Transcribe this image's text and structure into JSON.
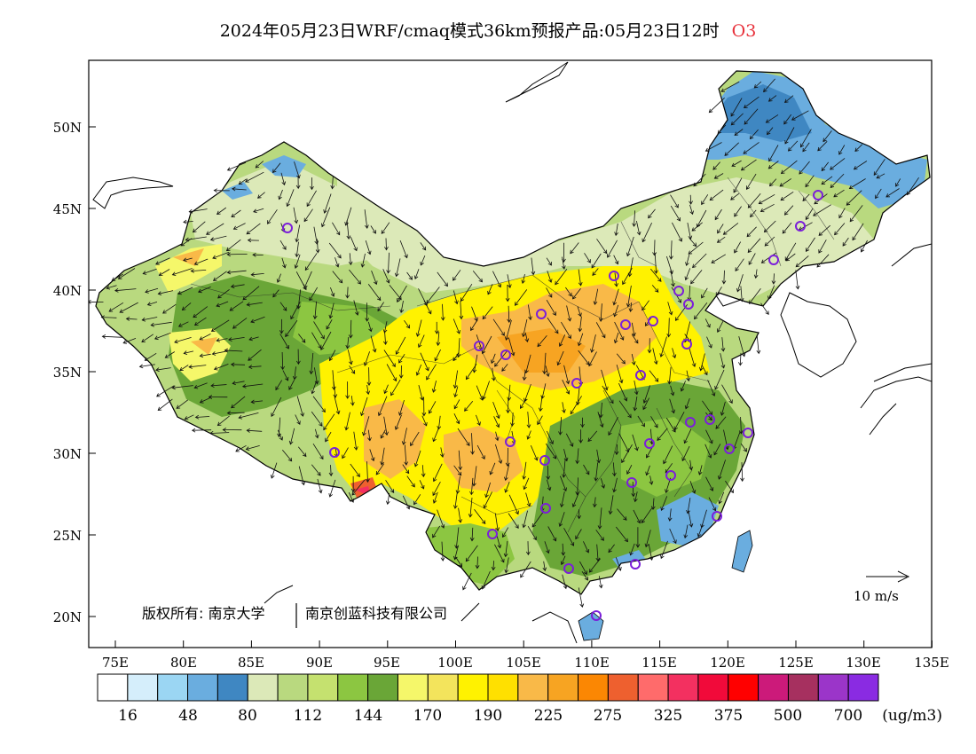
{
  "title": {
    "main": "2024年05月23日WRF/cmaq模式36km预报产品:05月23日12时",
    "species": "O3",
    "species_color": "#e8303a"
  },
  "axes": {
    "lat_labels": [
      "50N",
      "45N",
      "40N",
      "35N",
      "30N",
      "25N",
      "20N"
    ],
    "lon_labels": [
      "75E",
      "80E",
      "85E",
      "90E",
      "95E",
      "100E",
      "105E",
      "110E",
      "115E",
      "120E",
      "125E",
      "130E",
      "135E"
    ]
  },
  "copyright": {
    "part1": "版权所有: 南京大学",
    "part2": "南京创蓝科技有限公司"
  },
  "wind_reference": {
    "label": "10 m/s"
  },
  "colorbar": {
    "unit": "(ug/m3)",
    "colors": [
      "#ffffff",
      "#d5eefb",
      "#9bd6f3",
      "#6aaddf",
      "#3f87c2",
      "#dce9b8",
      "#b9d97f",
      "#c5e16f",
      "#8cc641",
      "#6aa637",
      "#f5f76a",
      "#f3e45c",
      "#fff200",
      "#ffe000",
      "#f9b948",
      "#f7a422",
      "#fb8703",
      "#ee602f",
      "#ff6b6b",
      "#f33060",
      "#f10a3a",
      "#ff0000",
      "#cc1a7a",
      "#a6305f",
      "#9b35c9",
      "#8a2be2"
    ],
    "labels": [
      "16",
      "48",
      "80",
      "112",
      "144",
      "170",
      "190",
      "225",
      "275",
      "325",
      "375",
      "500",
      "700"
    ]
  }
}
